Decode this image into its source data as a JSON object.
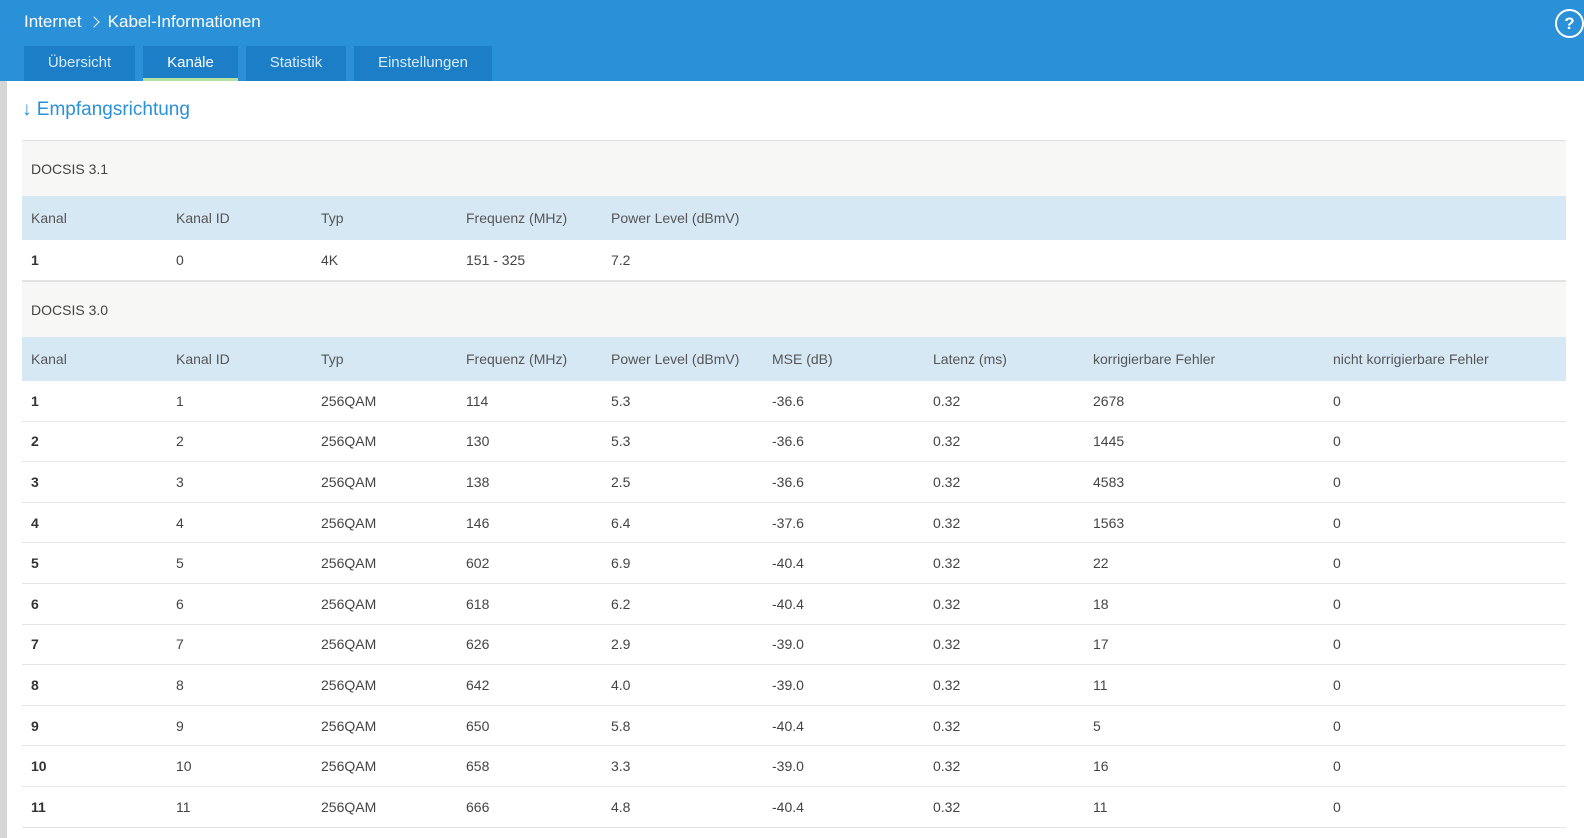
{
  "header": {
    "breadcrumb": [
      "Internet",
      "Kabel-Informationen"
    ],
    "help_label": "?"
  },
  "tabs": [
    {
      "label": "Übersicht",
      "active": false
    },
    {
      "label": "Kanäle",
      "active": true
    },
    {
      "label": "Statistik",
      "active": false
    },
    {
      "label": "Einstellungen",
      "active": false
    }
  ],
  "section_title": "↓ Empfangsrichtung",
  "docsis31": {
    "title": "DOCSIS 3.1",
    "columns": [
      "Kanal",
      "Kanal ID",
      "Typ",
      "Frequenz (MHz)",
      "Power Level (dBmV)"
    ],
    "rows": [
      [
        "1",
        "0",
        "4K",
        "151 - 325",
        "7.2"
      ]
    ]
  },
  "docsis30": {
    "title": "DOCSIS 3.0",
    "columns": [
      "Kanal",
      "Kanal ID",
      "Typ",
      "Frequenz (MHz)",
      "Power Level (dBmV)",
      "MSE (dB)",
      "Latenz (ms)",
      "korrigierbare Fehler",
      "nicht korrigierbare Fehler"
    ],
    "rows": [
      [
        "1",
        "1",
        "256QAM",
        "114",
        "5.3",
        "-36.6",
        "0.32",
        "2678",
        "0"
      ],
      [
        "2",
        "2",
        "256QAM",
        "130",
        "5.3",
        "-36.6",
        "0.32",
        "1445",
        "0"
      ],
      [
        "3",
        "3",
        "256QAM",
        "138",
        "2.5",
        "-36.6",
        "0.32",
        "4583",
        "0"
      ],
      [
        "4",
        "4",
        "256QAM",
        "146",
        "6.4",
        "-37.6",
        "0.32",
        "1563",
        "0"
      ],
      [
        "5",
        "5",
        "256QAM",
        "602",
        "6.9",
        "-40.4",
        "0.32",
        "22",
        "0"
      ],
      [
        "6",
        "6",
        "256QAM",
        "618",
        "6.2",
        "-40.4",
        "0.32",
        "18",
        "0"
      ],
      [
        "7",
        "7",
        "256QAM",
        "626",
        "2.9",
        "-39.0",
        "0.32",
        "17",
        "0"
      ],
      [
        "8",
        "8",
        "256QAM",
        "642",
        "4.0",
        "-39.0",
        "0.32",
        "11",
        "0"
      ],
      [
        "9",
        "9",
        "256QAM",
        "650",
        "5.8",
        "-40.4",
        "0.32",
        "5",
        "0"
      ],
      [
        "10",
        "10",
        "256QAM",
        "658",
        "3.3",
        "-39.0",
        "0.32",
        "16",
        "0"
      ],
      [
        "11",
        "11",
        "256QAM",
        "666",
        "4.8",
        "-40.4",
        "0.32",
        "11",
        "0"
      ]
    ]
  },
  "colors": {
    "header_bg": "#2a90d8",
    "tab_bg": "#1c7ec7",
    "active_underline": "#b5e0a3",
    "table_head_bg": "#d7e8f5"
  }
}
